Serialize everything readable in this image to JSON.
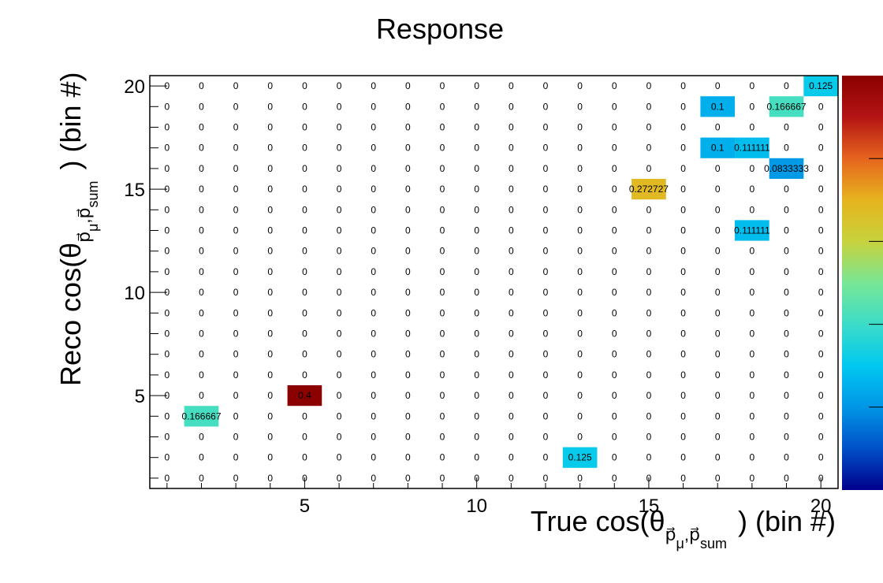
{
  "chart_data": {
    "type": "heatmap",
    "title": "Response",
    "xlabel": "True cos(θ_{p⃗_μ,p⃗_sum}) (bin #)",
    "ylabel": "Reco cos(θ_{p⃗_μ,p⃗_sum}) (bin #)",
    "xlabel_parts": {
      "pre": "True cos(θ",
      "sub": "p⃗",
      "sub_mu": "μ",
      "sub_mid": ",p⃗",
      "sub_end": "sum",
      "post": ") (bin #)"
    },
    "ylabel_parts": {
      "pre": "Reco cos(θ",
      "sub": "p⃗",
      "sub_mu": "μ",
      "sub_mid": ",p⃗",
      "sub_end": "sum",
      "post": ") (bin #)"
    },
    "xlim": [
      0.5,
      20.5
    ],
    "ylim": [
      0.5,
      20.5
    ],
    "x_ticks": [
      "5",
      "10",
      "15",
      "20"
    ],
    "y_ticks": [
      "5",
      "10",
      "15",
      "20"
    ],
    "nbins_x": 20,
    "nbins_y": 20,
    "zlim": [
      0,
      0.4
    ],
    "colormap": [
      "#00008b",
      "#0050c8",
      "#0096e6",
      "#00c8f0",
      "#3cdcc8",
      "#78e696",
      "#c8d23c",
      "#e6b41e",
      "#e6641e",
      "#b41414",
      "#8b0000"
    ],
    "cell_label_font": "Liberation Sans",
    "nonzero_cells": [
      {
        "x": 20,
        "y": 20,
        "value": 0.125,
        "label": "0.125"
      },
      {
        "x": 17,
        "y": 19,
        "value": 0.1,
        "label": "0.1"
      },
      {
        "x": 19,
        "y": 19,
        "value": 0.166667,
        "label": "0.166667"
      },
      {
        "x": 17,
        "y": 17,
        "value": 0.1,
        "label": "0.1"
      },
      {
        "x": 18,
        "y": 17,
        "value": 0.111111,
        "label": "0.111111"
      },
      {
        "x": 19,
        "y": 16,
        "value": 0.0833333,
        "label": "0.0833333"
      },
      {
        "x": 15,
        "y": 15,
        "value": 0.272727,
        "label": "0.272727"
      },
      {
        "x": 18,
        "y": 13,
        "value": 0.111111,
        "label": "0.111111"
      },
      {
        "x": 5,
        "y": 5,
        "value": 0.4,
        "label": "0.4"
      },
      {
        "x": 2,
        "y": 4,
        "value": 0.166667,
        "label": "0.166667"
      },
      {
        "x": 13,
        "y": 2,
        "value": 0.125,
        "label": "0.125"
      }
    ],
    "zero_label": "0"
  }
}
